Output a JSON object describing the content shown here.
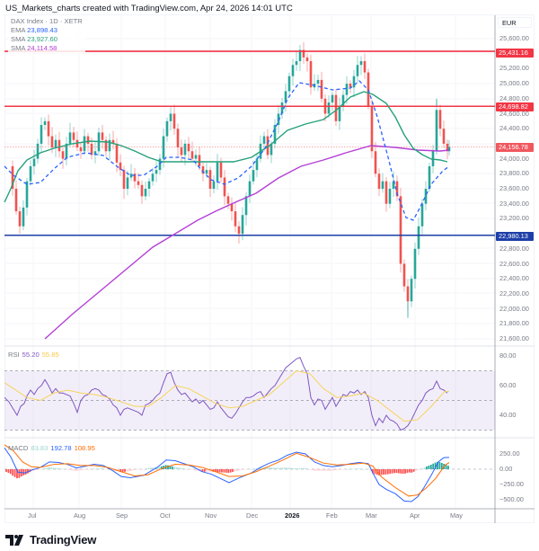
{
  "caption": "US_Markets_charts created with TradingView.com, Apr 24, 2026 14:01 UTC",
  "legend": {
    "symbol": "DAX Index · 1D · XETR",
    "ema_label": "EMA",
    "ema_value": "23,898.43",
    "sma1_label": "SMA",
    "sma1_value": "23,927.60",
    "sma2_label": "SMA",
    "sma2_value": "24,114.58"
  },
  "currency": "EUR",
  "price_axis": [
    "25,600.00",
    "25,200.00",
    "25,000.00",
    "24,800.00",
    "24,600.00",
    "24,400.00",
    "24,000.00",
    "23,800.00",
    "23,600.00",
    "23,400.00",
    "23,200.00",
    "22,800.00",
    "22,600.00",
    "22,400.00",
    "22,200.00",
    "22,000.00",
    "21,800.00",
    "21,600.00"
  ],
  "price_tags": {
    "resistance_upper": "25,431.16",
    "resistance_lower": "24,698.82",
    "last_price": "24,156.78",
    "support": "22,980.13"
  },
  "rsi": {
    "label": "RSI",
    "value": "55.20",
    "signal": "55.85",
    "axis": [
      "80.00",
      "60.00",
      "40.00"
    ]
  },
  "macd": {
    "label": "MACD",
    "histogram": "83.83",
    "macd": "192.78",
    "signal": "108.95",
    "axis": [
      "250.00",
      "0.00",
      "−250.00",
      "−500.00"
    ]
  },
  "time_axis": [
    "Jul",
    "Aug",
    "Sep",
    "Oct",
    "Nov",
    "Dec",
    "2026",
    "Feb",
    "Mar",
    "Apr",
    "May"
  ],
  "branding": "TradingView",
  "colors": {
    "up": "#26a69a",
    "down": "#ef5350",
    "resistance": "#f23645",
    "support": "#1e3fa8",
    "ema": "#2962ff",
    "sma_fast": "#26a17b",
    "sma_slow": "#b440d6",
    "rsi": "#7e57c2",
    "rsi_ma": "#f7d35c",
    "macd_line": "#2962ff",
    "macd_signal": "#ff6d00"
  },
  "chart_data": {
    "type": "candlestick",
    "title": "DAX Index · 1D · XETR",
    "ylabel": "EUR",
    "ylim": [
      21500,
      25800
    ],
    "horizontal_lines": [
      25431.16,
      24698.82,
      22980.13
    ],
    "last_price": 24156.78,
    "x_ticks": [
      "Jul",
      "Aug",
      "Sep",
      "Oct",
      "Nov",
      "Dec",
      "2026",
      "Feb",
      "Mar",
      "Apr",
      "May"
    ],
    "approx_monthly_closes": {
      "Jun": 23900,
      "Jul": 24100,
      "Aug": 24050,
      "Sep": 23700,
      "Oct": 24300,
      "Nov": 23300,
      "Dec": 24300,
      "Jan": 25300,
      "Feb": 25100,
      "Mar": 22600,
      "Apr": 24156.78
    },
    "series": [
      {
        "name": "EMA",
        "value": 23898.43
      },
      {
        "name": "SMA (fast)",
        "value": 23927.6
      },
      {
        "name": "SMA (slow)",
        "value": 24114.58
      }
    ],
    "indicators": {
      "rsi": {
        "value": 55.2,
        "ma": 55.85,
        "bands": [
          30,
          50,
          70
        ],
        "ylim": [
          25,
          85
        ]
      },
      "macd": {
        "histogram": 83.83,
        "macd": 192.78,
        "signal": 108.95,
        "ylim": [
          -600,
          350
        ]
      }
    }
  }
}
